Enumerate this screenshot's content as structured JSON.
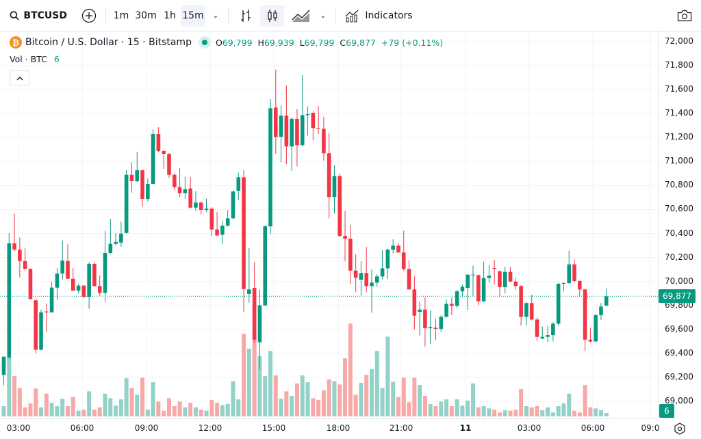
{
  "toolbar": {
    "symbol": "BTCUSD",
    "intervals": [
      "1m",
      "30m",
      "1h",
      "15m"
    ],
    "active_interval": "15m",
    "indicators_label": "Indicators"
  },
  "legend": {
    "title": "Bitcoin / U.S. Dollar · 15 · Bitstamp",
    "o_label": "O",
    "o": "69,799",
    "h_label": "H",
    "h": "69,939",
    "l_label": "L",
    "l": "69,799",
    "c_label": "C",
    "c": "69,877",
    "change": "+79 (+0.11%)"
  },
  "volume_legend": {
    "label": "Vol · BTC",
    "value": "6"
  },
  "price_axis": {
    "labels": [
      "72,000",
      "71,800",
      "71,600",
      "71,400",
      "71,200",
      "71,000",
      "70,800",
      "70,600",
      "70,400",
      "70,200",
      "70,000",
      "69,800",
      "69,600",
      "69,400",
      "69,200",
      "69,000"
    ],
    "last_price": "69,877",
    "last_volume": "6"
  },
  "time_axis": {
    "labels": [
      "03:00",
      "06:00",
      "09:00",
      "12:00",
      "15:00",
      "18:00",
      "21:00",
      "11",
      "03:00",
      "06:00",
      "09:0"
    ]
  },
  "colors": {
    "up": "#089981",
    "down": "#f23645",
    "up_vol": "#92d2c8",
    "down_vol": "#f7a9a7",
    "bitcoin": "#f7931a"
  },
  "chart_data": {
    "type": "candlestick",
    "interval_minutes": 15,
    "ylim": [
      68900,
      72100
    ],
    "fields": [
      "open",
      "high",
      "low",
      "close",
      "volume"
    ],
    "candles": [
      [
        69221,
        69373,
        69135,
        69373,
        18
      ],
      [
        69367,
        70403,
        69360,
        70319,
        104
      ],
      [
        70319,
        70565,
        70253,
        70266,
        71
      ],
      [
        70266,
        70367,
        70034,
        70171,
        50
      ],
      [
        70171,
        70276,
        70100,
        70105,
        16
      ],
      [
        70105,
        70110,
        69850,
        69854,
        23
      ],
      [
        69843,
        69850,
        69398,
        69431,
        49
      ],
      [
        69431,
        69766,
        69425,
        69743,
        16
      ],
      [
        69750,
        69816,
        69582,
        69743,
        40
      ],
      [
        69743,
        69996,
        69740,
        69949,
        24
      ],
      [
        69949,
        70111,
        69849,
        70067,
        18
      ],
      [
        70067,
        70342,
        70015,
        70175,
        31
      ],
      [
        70171,
        70310,
        70020,
        70023,
        18
      ],
      [
        70023,
        70114,
        69920,
        69924,
        34
      ],
      [
        69924,
        69980,
        69901,
        69966,
        10
      ],
      [
        69966,
        69970,
        69860,
        69872,
        12
      ],
      [
        69872,
        70160,
        69772,
        70147,
        44
      ],
      [
        70147,
        70165,
        69958,
        69962,
        12
      ],
      [
        69962,
        70054,
        69880,
        69905,
        16
      ],
      [
        69905,
        70422,
        69829,
        70238,
        40
      ],
      [
        70238,
        70523,
        70230,
        70314,
        32
      ],
      [
        70314,
        70405,
        70300,
        70330,
        19
      ],
      [
        70325,
        70500,
        70290,
        70399,
        30
      ],
      [
        70405,
        70928,
        70400,
        70890,
        67
      ],
      [
        70890,
        70995,
        70741,
        70837,
        50
      ],
      [
        70837,
        71080,
        70830,
        70928,
        38
      ],
      [
        70928,
        70935,
        70622,
        70688,
        68
      ],
      [
        70688,
        70860,
        70670,
        70814,
        12
      ],
      [
        70814,
        71270,
        70810,
        71230,
        60
      ],
      [
        71230,
        71287,
        71080,
        71088,
        26
      ],
      [
        71088,
        71095,
        70941,
        71065,
        10
      ],
      [
        71065,
        71070,
        70865,
        70890,
        32
      ],
      [
        70890,
        70905,
        70761,
        70787,
        18
      ],
      [
        70787,
        70945,
        70705,
        70738,
        26
      ],
      [
        70738,
        70875,
        70688,
        70770,
        16
      ],
      [
        70776,
        70871,
        70610,
        70616,
        24
      ],
      [
        70616,
        70755,
        70588,
        70658,
        16
      ],
      [
        70658,
        70670,
        70561,
        70597,
        12
      ],
      [
        70597,
        70690,
        70580,
        70608,
        10
      ],
      [
        70608,
        70620,
        70375,
        70434,
        29
      ],
      [
        70434,
        70580,
        70380,
        70384,
        24
      ],
      [
        70390,
        70500,
        70314,
        70466,
        20
      ],
      [
        70466,
        70595,
        70460,
        70527,
        22
      ],
      [
        70527,
        70760,
        70520,
        70751,
        62
      ],
      [
        70757,
        70909,
        70681,
        70869,
        30
      ],
      [
        70869,
        70928,
        69744,
        69937,
        145
      ],
      [
        69896,
        70280,
        69823,
        69934,
        119
      ],
      [
        69947,
        70162,
        69490,
        69515,
        145
      ],
      [
        69493,
        69934,
        69268,
        69801,
        106
      ],
      [
        69801,
        70470,
        69795,
        70460,
        71
      ],
      [
        70460,
        71521,
        70396,
        71445,
        115
      ],
      [
        71451,
        71768,
        71065,
        71207,
        72
      ],
      [
        71207,
        71470,
        70993,
        71384,
        31
      ],
      [
        71384,
        71635,
        70979,
        71126,
        44
      ],
      [
        71126,
        71370,
        70922,
        71356,
        36
      ],
      [
        71356,
        71439,
        70960,
        71137,
        58
      ],
      [
        71137,
        71721,
        71130,
        71388,
        72
      ],
      [
        71388,
        71460,
        71217,
        71395,
        60
      ],
      [
        71407,
        71420,
        71175,
        71280,
        32
      ],
      [
        71280,
        71464,
        71230,
        71274,
        29
      ],
      [
        71274,
        71373,
        71008,
        71069,
        46
      ],
      [
        71069,
        71240,
        70527,
        70704,
        65
      ],
      [
        70704,
        70970,
        70567,
        70880,
        62
      ],
      [
        70880,
        70900,
        70370,
        70380,
        56
      ],
      [
        70380,
        70590,
        70168,
        70358,
        102
      ],
      [
        70358,
        70472,
        69977,
        70091,
        163
      ],
      [
        70091,
        70228,
        69911,
        70032,
        38
      ],
      [
        70015,
        70171,
        69882,
        70071,
        59
      ],
      [
        70071,
        70289,
        69909,
        69962,
        73
      ],
      [
        69962,
        70101,
        69740,
        69991,
        83
      ],
      [
        69991,
        70060,
        69955,
        70042,
        115
      ],
      [
        70042,
        70261,
        70020,
        70110,
        50
      ],
      [
        70110,
        70275,
        70020,
        70266,
        140
      ],
      [
        70266,
        70352,
        70235,
        70299,
        61
      ],
      [
        70299,
        70320,
        70240,
        70242,
        34
      ],
      [
        70242,
        70424,
        70090,
        70105,
        68
      ],
      [
        70105,
        70177,
        69930,
        69934,
        25
      ],
      [
        69934,
        70047,
        69601,
        69715,
        68
      ],
      [
        69747,
        69829,
        69550,
        69766,
        55
      ],
      [
        69766,
        69867,
        69458,
        69610,
        36
      ],
      [
        69610,
        69759,
        69481,
        69620,
        22
      ],
      [
        69615,
        69690,
        69510,
        69605,
        18
      ],
      [
        69605,
        69720,
        69580,
        69706,
        26
      ],
      [
        69706,
        69850,
        69700,
        69814,
        30
      ],
      [
        69814,
        69867,
        69720,
        69797,
        18
      ],
      [
        69797,
        69930,
        69780,
        69918,
        30
      ],
      [
        69918,
        69975,
        69870,
        69956,
        19
      ],
      [
        69947,
        70060,
        69763,
        70057,
        28
      ],
      [
        70052,
        70133,
        69880,
        70057,
        58
      ],
      [
        70053,
        70060,
        69801,
        69835,
        16
      ],
      [
        69835,
        70166,
        69830,
        70029,
        18
      ],
      [
        70029,
        70140,
        69990,
        70048,
        14
      ],
      [
        70112,
        70181,
        69975,
        70110,
        12
      ],
      [
        70086,
        70090,
        69880,
        69953,
        7
      ],
      [
        69953,
        70124,
        69900,
        70080,
        11
      ],
      [
        70080,
        70120,
        69995,
        70000,
        10
      ],
      [
        70000,
        70030,
        69930,
        69962,
        12
      ],
      [
        69962,
        69970,
        69633,
        69705,
        48
      ],
      [
        69705,
        69830,
        69633,
        69820,
        18
      ],
      [
        69820,
        69890,
        69675,
        69683,
        16
      ],
      [
        69683,
        69700,
        69506,
        69538,
        18
      ],
      [
        69525,
        69624,
        69520,
        69538,
        11
      ],
      [
        69538,
        69630,
        69496,
        69553,
        16
      ],
      [
        69553,
        69660,
        69500,
        69648,
        7
      ],
      [
        69648,
        69990,
        69630,
        69981,
        18
      ],
      [
        69981,
        69995,
        69920,
        69987,
        23
      ],
      [
        69987,
        70257,
        69980,
        70143,
        40
      ],
      [
        70143,
        70185,
        69990,
        70004,
        10
      ],
      [
        70004,
        70010,
        69880,
        69934,
        7
      ],
      [
        69934,
        69940,
        69420,
        69515,
        55
      ],
      [
        69515,
        69614,
        69490,
        69500,
        16
      ],
      [
        69500,
        69730,
        69495,
        69719,
        14
      ],
      [
        69719,
        69820,
        69680,
        69791,
        11
      ],
      [
        69799,
        69939,
        69799,
        69877,
        6
      ]
    ]
  }
}
